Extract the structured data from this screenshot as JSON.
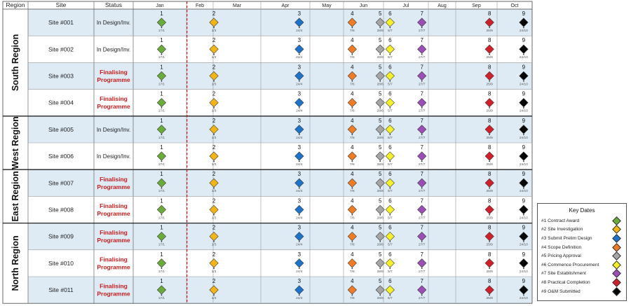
{
  "headers": {
    "region": "Region",
    "site": "Site",
    "status": "Status"
  },
  "months": [
    "Jan",
    "Feb",
    "Mar",
    "Apr",
    "May",
    "Jun",
    "Jul",
    "Aug",
    "Sep",
    "Oct"
  ],
  "chart_data": {
    "type": "table",
    "milestones": [
      {
        "num": "1",
        "label": "17/1",
        "date": "17/1",
        "color": "#6aab3a"
      },
      {
        "num": "2",
        "label": "1/3",
        "date": "1/3",
        "color": "#f3b415"
      },
      {
        "num": "3",
        "label": "24/4",
        "date": "24/4",
        "color": "#1e73c8"
      },
      {
        "num": "4",
        "label": "7/6",
        "date": "7/6",
        "color": "#ef7c25"
      },
      {
        "num": "5",
        "label": "28/6",
        "date": "28/6",
        "color": "#a5a5a5"
      },
      {
        "num": "6",
        "label": "5/7",
        "date": "5/7",
        "color": "#f6f02a"
      },
      {
        "num": "7",
        "label": "27/7",
        "date": "27/7",
        "color": "#9b4fb4"
      },
      {
        "num": "8",
        "label": "25/9",
        "date": "25/9",
        "color": "#d0202b"
      },
      {
        "num": "9",
        "label": "24/10",
        "date": "24/10",
        "color": "#050505"
      }
    ],
    "today_line_date": "1/2",
    "regions": [
      {
        "name": "South Region",
        "sites": [
          {
            "site": "Site #001",
            "status": "In Design/Inv.",
            "status_lines": [
              "In Design/Inv."
            ],
            "highlight": false
          },
          {
            "site": "Site #002",
            "status": "In Design/Inv.",
            "status_lines": [
              "In Design/Inv."
            ],
            "highlight": false
          },
          {
            "site": "Site #003",
            "status": "Finalising Programme",
            "status_lines": [
              "Finalising",
              "Programme"
            ],
            "highlight": true
          },
          {
            "site": "Site #004",
            "status": "Finalising Programme",
            "status_lines": [
              "Finalising",
              "Programme"
            ],
            "highlight": true
          }
        ]
      },
      {
        "name": "West Region",
        "sites": [
          {
            "site": "Site #005",
            "status": "In Design/Inv.",
            "status_lines": [
              "In Design/Inv."
            ],
            "highlight": false
          },
          {
            "site": "Site #006",
            "status": "In Design/Inv.",
            "status_lines": [
              "In Design/Inv."
            ],
            "highlight": false
          }
        ]
      },
      {
        "name": "East Region",
        "sites": [
          {
            "site": "Site #007",
            "status": "Finalising Programme",
            "status_lines": [
              "Finalising",
              "Programme"
            ],
            "highlight": true
          },
          {
            "site": "Site #008",
            "status": "Finalising Programme",
            "status_lines": [
              "Finalising",
              "Programme"
            ],
            "highlight": true
          }
        ]
      },
      {
        "name": "North Region",
        "sites": [
          {
            "site": "Site #009",
            "status": "Finalising Programme",
            "status_lines": [
              "Finalising",
              "Programme"
            ],
            "highlight": true
          },
          {
            "site": "Site #010",
            "status": "Finalising Programme",
            "status_lines": [
              "Finalising",
              "Programme"
            ],
            "highlight": true
          },
          {
            "site": "Site #011",
            "status": "Finalising Programme",
            "status_lines": [
              "Finalising",
              "Programme"
            ],
            "highlight": true
          }
        ]
      }
    ],
    "row_fill_colors": [
      "#deebf5",
      "#ffffff",
      "#deebf5",
      "#ffffff"
    ],
    "status_highlight_color": "#d11a1a"
  },
  "legend": {
    "title": "Key Dates",
    "items": [
      {
        "label": "#1 Contract Award",
        "color": "#6aab3a"
      },
      {
        "label": "#2 Site Investigation",
        "color": "#f3b415"
      },
      {
        "label": "#3 Submit Prelim Design",
        "color": "#1e73c8"
      },
      {
        "label": "#4 Scope Definition",
        "color": "#ef7c25"
      },
      {
        "label": "#5 Pricing Approval",
        "color": "#a5a5a5"
      },
      {
        "label": "#6 Commence Procurement",
        "color": "#f6f02a"
      },
      {
        "label": "#7 Site Establishment",
        "color": "#9b4fb4"
      },
      {
        "label": "#8 Practical Completion",
        "color": "#d0202b"
      },
      {
        "label": "#9 O&M Submitted",
        "color": "#050505"
      }
    ]
  }
}
